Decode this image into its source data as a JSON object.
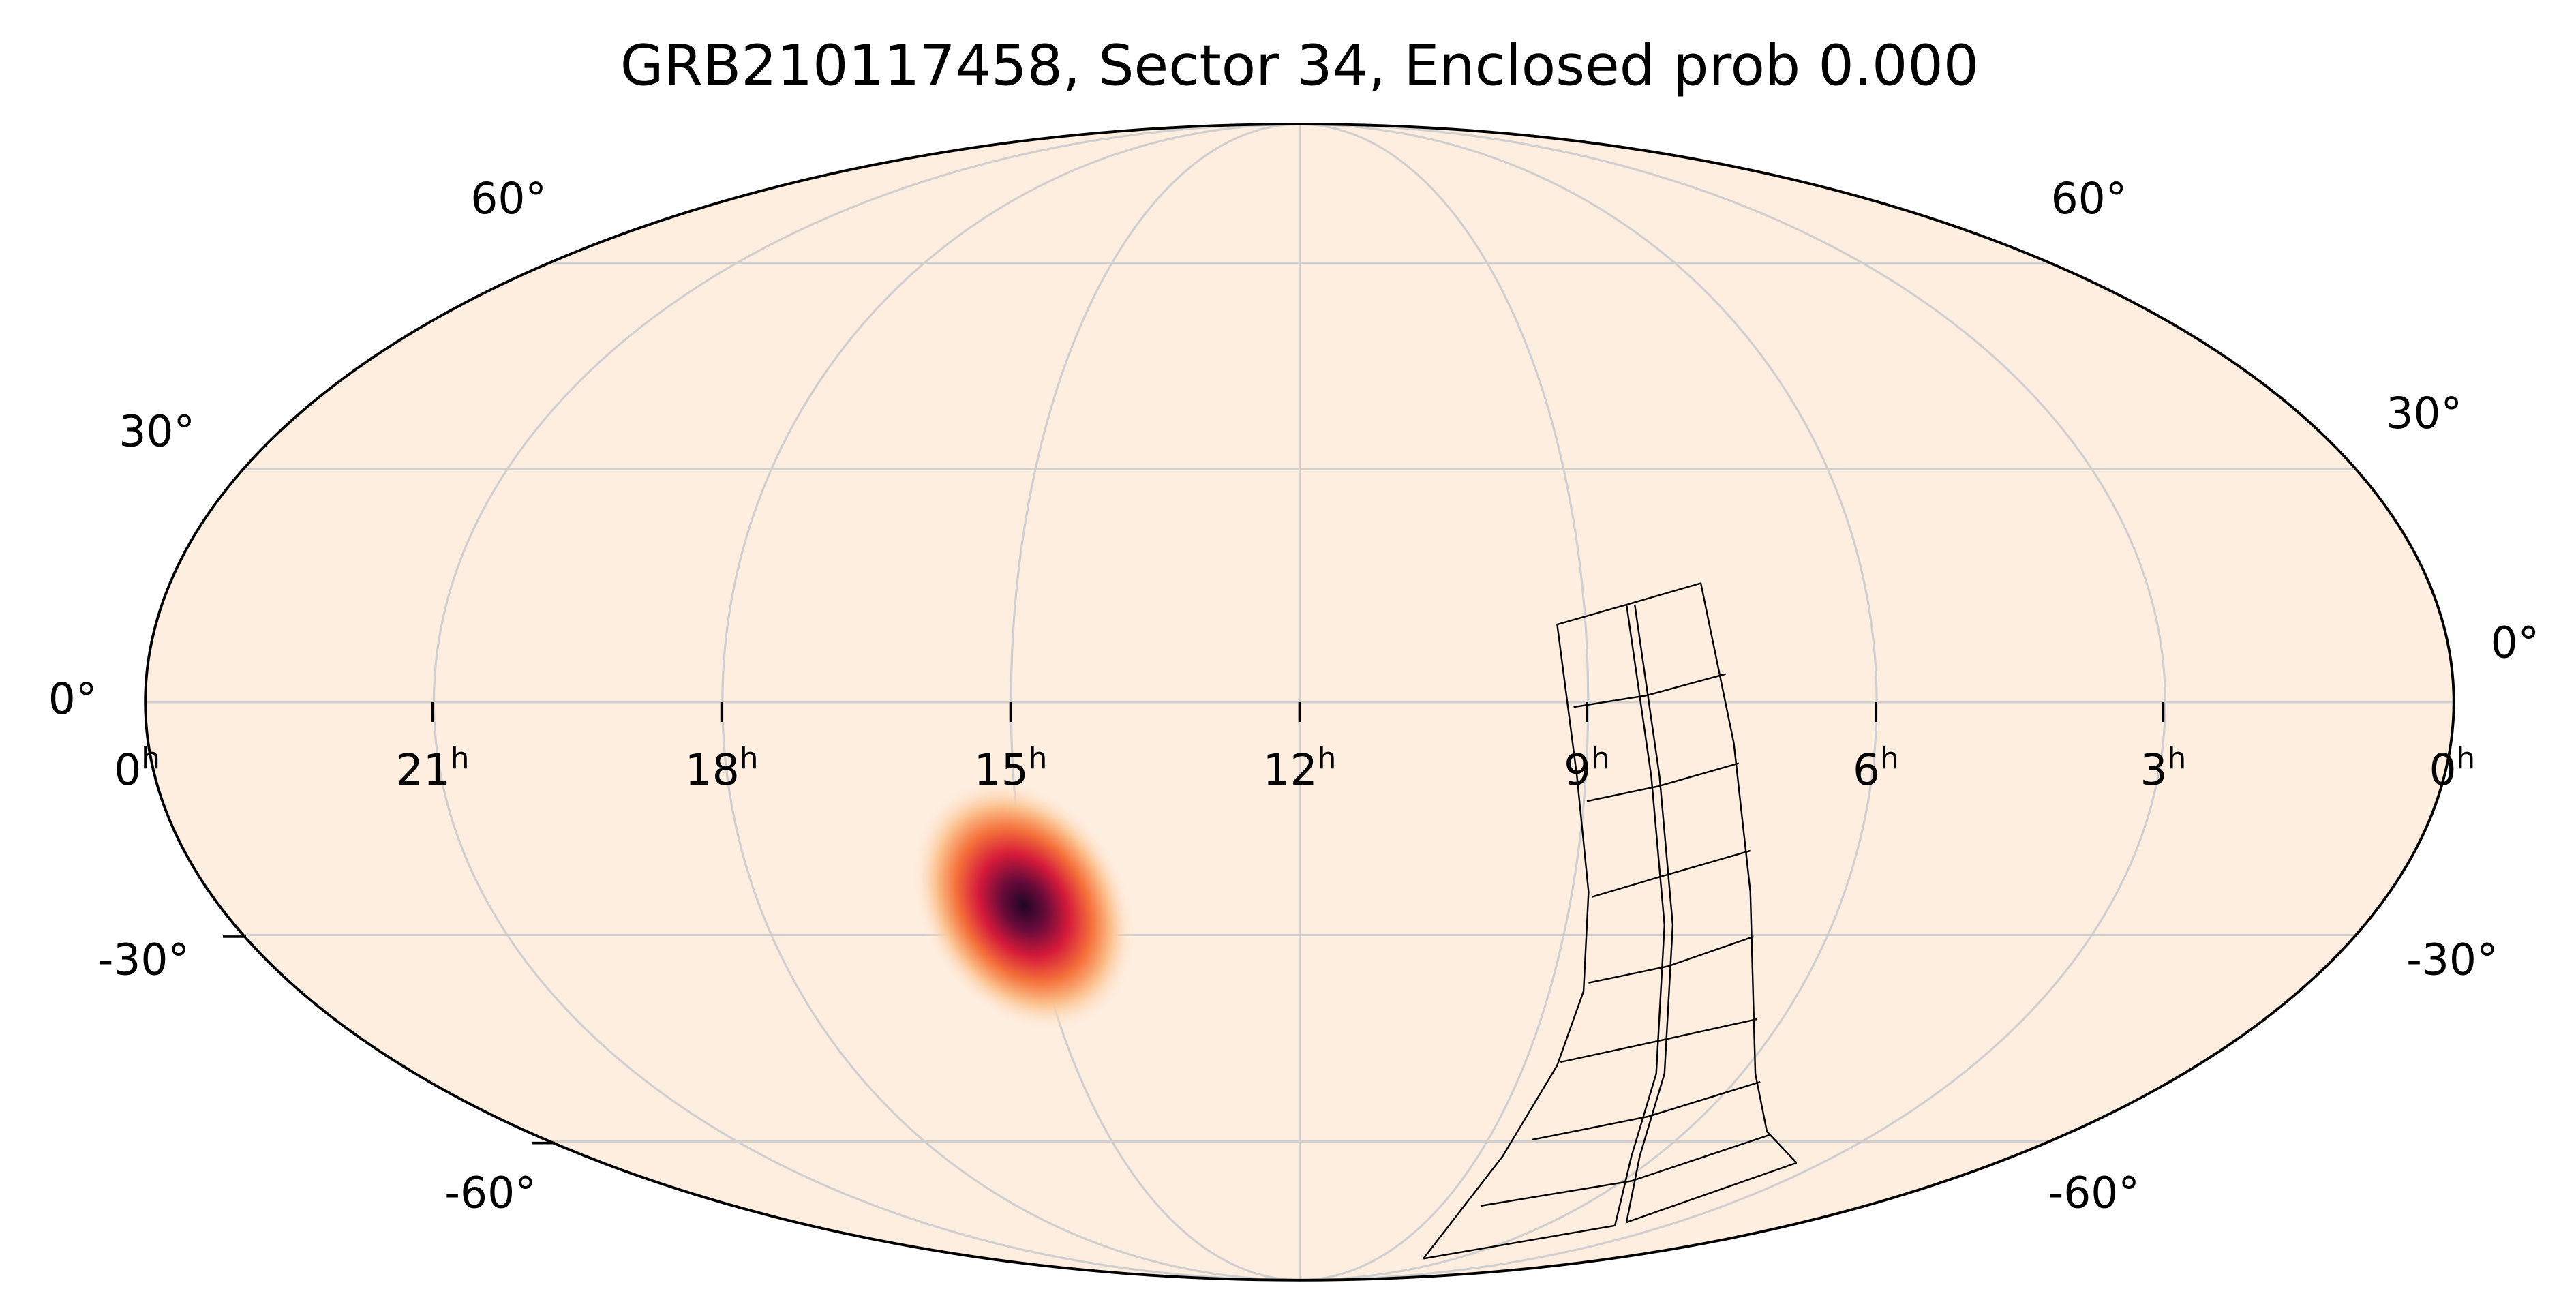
{
  "title": "GRB210117458, Sector 34, Enclosed prob 0.000",
  "ra_labels": [
    {
      "hour": "0",
      "sup": "h"
    },
    {
      "hour": "21",
      "sup": "h"
    },
    {
      "hour": "18",
      "sup": "h"
    },
    {
      "hour": "15",
      "sup": "h"
    },
    {
      "hour": "12",
      "sup": "h"
    },
    {
      "hour": "9",
      "sup": "h"
    },
    {
      "hour": "6",
      "sup": "h"
    },
    {
      "hour": "3",
      "sup": "h"
    },
    {
      "hour": "0",
      "sup": "h"
    }
  ],
  "dec_labels_left": [
    "60°",
    "30°",
    "0°",
    "-30°",
    "-60°"
  ],
  "dec_labels_right": [
    "60°",
    "30°",
    "0°",
    "-30°",
    "-60°"
  ]
}
